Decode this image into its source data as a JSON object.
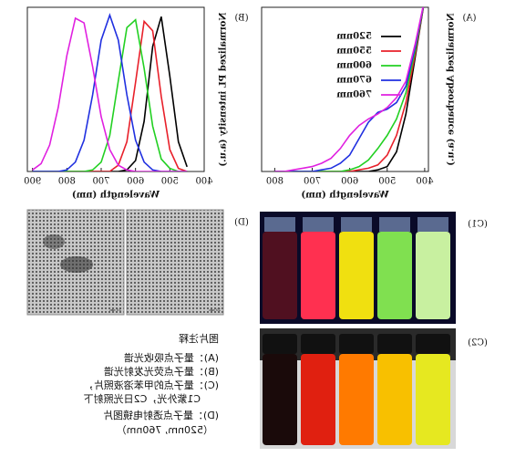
{
  "chart_data": [
    {
      "type": "line",
      "panel": "(A)",
      "xlabel": "Wavelength (nm)",
      "ylabel": "Normalized Absorbance (a.u.)",
      "x": [
        400,
        425,
        450,
        475,
        500,
        525,
        550,
        575,
        600,
        625,
        650,
        675,
        700,
        725,
        750,
        775,
        800
      ],
      "xlim": [
        390,
        835
      ],
      "xticks": [
        400,
        500,
        600,
        700,
        800
      ],
      "ylim": [
        0,
        1
      ],
      "legend": "upper left",
      "series": [
        {
          "name": "520nm",
          "color": "#000000",
          "values": [
            1.05,
            0.7,
            0.35,
            0.12,
            0.03,
            0.01,
            0,
            0,
            0,
            0,
            0,
            0,
            0,
            0,
            0,
            0,
            0
          ]
        },
        {
          "name": "550nm",
          "color": "#e8202a",
          "values": [
            1.05,
            0.72,
            0.42,
            0.22,
            0.1,
            0.04,
            0.02,
            0.01,
            0,
            0,
            0,
            0,
            0,
            0,
            0,
            0,
            0
          ]
        },
        {
          "name": "600nm",
          "color": "#22d022",
          "values": [
            1.05,
            0.74,
            0.48,
            0.32,
            0.22,
            0.14,
            0.07,
            0.03,
            0.01,
            0,
            0,
            0,
            0,
            0,
            0,
            0,
            0
          ]
        },
        {
          "name": "670nm",
          "color": "#2030e0",
          "values": [
            1.05,
            0.76,
            0.52,
            0.42,
            0.38,
            0.36,
            0.3,
            0.2,
            0.1,
            0.05,
            0.02,
            0.01,
            0,
            0,
            0,
            0,
            0
          ]
        },
        {
          "name": "760nm",
          "color": "#e020e0",
          "values": [
            1.05,
            0.78,
            0.55,
            0.45,
            0.39,
            0.35,
            0.32,
            0.28,
            0.22,
            0.14,
            0.08,
            0.05,
            0.03,
            0.02,
            0.01,
            0,
            0
          ]
        }
      ]
    },
    {
      "type": "line",
      "panel": "(B)",
      "xlabel": "Wavelength (nm)",
      "ylabel": "Normalized PL intensity (a.u.)",
      "x": [
        450,
        475,
        500,
        525,
        550,
        575,
        600,
        625,
        650,
        675,
        700,
        725,
        750,
        775,
        800,
        825,
        850,
        875,
        900
      ],
      "xlim": [
        400,
        915
      ],
      "xticks": [
        400,
        500,
        600,
        700,
        800,
        900
      ],
      "ylim": [
        0,
        1.05
      ],
      "series": [
        {
          "color": "#000000",
          "values": [
            0.03,
            0.19,
            0.61,
            0.99,
            0.8,
            0.32,
            0.07,
            0.01,
            0,
            0,
            0,
            0,
            0,
            0,
            0,
            0,
            0,
            0,
            0
          ]
        },
        {
          "color": "#e8202a",
          "values": [
            0,
            0.02,
            0.14,
            0.48,
            0.9,
            0.96,
            0.57,
            0.19,
            0.04,
            0,
            0,
            0,
            0,
            0,
            0,
            0,
            0,
            0,
            0
          ]
        },
        {
          "color": "#22d022",
          "values": [
            0,
            0,
            0.02,
            0.08,
            0.29,
            0.66,
            0.97,
            0.92,
            0.58,
            0.23,
            0.06,
            0.01,
            0,
            0,
            0,
            0,
            0,
            0,
            0
          ]
        },
        {
          "color": "#2030e0",
          "values": [
            0,
            0,
            0,
            0,
            0.01,
            0.06,
            0.2,
            0.49,
            0.84,
            1,
            0.84,
            0.49,
            0.2,
            0.06,
            0.01,
            0,
            0,
            0,
            0
          ]
        },
        {
          "color": "#e020e0",
          "values": [
            0,
            0,
            0,
            0,
            0,
            0,
            0,
            0.01,
            0.04,
            0.14,
            0.35,
            0.67,
            0.95,
            0.98,
            0.74,
            0.41,
            0.17,
            0.05,
            0.01
          ]
        }
      ]
    }
  ],
  "panels": {
    "C1": "(C1)",
    "C2": "(C2)",
    "D": "(D)",
    "scale": [
      "20 nm",
      "20 nm"
    ]
  },
  "caption": {
    "title": "图片注释",
    "lines": [
      "(A)：量子点吸收光谱",
      "(B)：量子点荧光发射光谱",
      "(C)：量子点的甲苯溶液照片，",
      "C1紫外光，C2日光照射下",
      "(D)：量子点透射电镜图片",
      "（520nm, 760nm）"
    ]
  }
}
